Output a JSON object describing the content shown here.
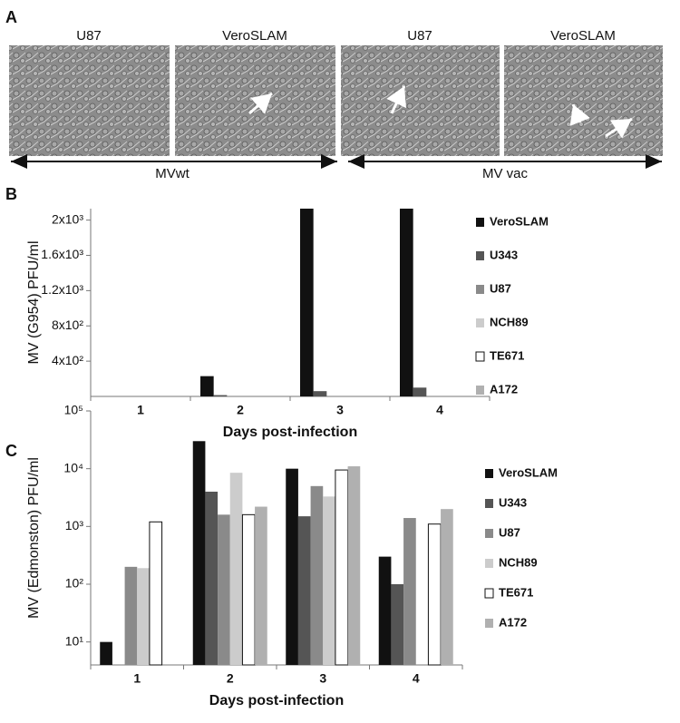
{
  "panel_a": {
    "label": "A",
    "images": [
      "U87",
      "VeroSLAM",
      "U87",
      "VeroSLAM"
    ],
    "groups": [
      "MVwt",
      "MV vac"
    ]
  },
  "chart_data": [
    {
      "type": "bar",
      "panel": "B",
      "y_label": "MV (G954) PFU/ml",
      "x_label": "Days post-infection",
      "categories": [
        "1",
        "2",
        "3",
        "4"
      ],
      "log_scale": false,
      "ylim": [
        0,
        2130
      ],
      "yticks": [
        {
          "value": 400,
          "label": "4x10²"
        },
        {
          "value": 800,
          "label": "8x10²"
        },
        {
          "value": 1200,
          "label": "1.2x10³"
        },
        {
          "value": 1600,
          "label": "1.6x10³"
        },
        {
          "value": 2000,
          "label": "2x10³"
        }
      ],
      "series": [
        {
          "name": "VeroSLAM",
          "color": "#111111",
          "values": [
            0,
            230,
            2130,
            2130
          ]
        },
        {
          "name": "U343",
          "color": "#555555",
          "values": [
            0,
            15,
            60,
            100
          ]
        },
        {
          "name": "U87",
          "color": "#8a8a8a",
          "values": [
            0,
            0,
            0,
            0
          ]
        },
        {
          "name": "NCH89",
          "color": "#cccccc",
          "values": [
            0,
            0,
            0,
            0
          ]
        },
        {
          "name": "TE671",
          "color": "#ffffff",
          "values": [
            0,
            0,
            0,
            0
          ]
        },
        {
          "name": "A172",
          "color": "#b0b0b0",
          "values": [
            0,
            0,
            0,
            0
          ]
        }
      ]
    },
    {
      "type": "bar",
      "panel": "C",
      "y_label": "MV (Edmonston) PFU/ml",
      "x_label": "Days post-infection",
      "categories": [
        "1",
        "2",
        "3",
        "4"
      ],
      "log_scale": true,
      "ylim": [
        4,
        100000
      ],
      "yticks": [
        {
          "value": 10,
          "label": "10¹"
        },
        {
          "value": 100,
          "label": "10²"
        },
        {
          "value": 1000,
          "label": "10³"
        },
        {
          "value": 10000,
          "label": "10⁴"
        },
        {
          "value": 100000,
          "label": "10⁵"
        }
      ],
      "series": [
        {
          "name": "VeroSLAM",
          "color": "#111111",
          "values": [
            10,
            30000,
            10000,
            300
          ]
        },
        {
          "name": "U343",
          "color": "#555555",
          "values": [
            null,
            4000,
            1500,
            100
          ]
        },
        {
          "name": "U87",
          "color": "#8a8a8a",
          "values": [
            200,
            1600,
            5000,
            1400
          ]
        },
        {
          "name": "NCH89",
          "color": "#cccccc",
          "values": [
            190,
            8500,
            3300,
            null
          ]
        },
        {
          "name": "TE671",
          "color": "#ffffff",
          "values": [
            1200,
            1600,
            9500,
            1100
          ]
        },
        {
          "name": "A172",
          "color": "#b0b0b0",
          "values": [
            null,
            2200,
            11000,
            2000
          ]
        }
      ]
    }
  ]
}
